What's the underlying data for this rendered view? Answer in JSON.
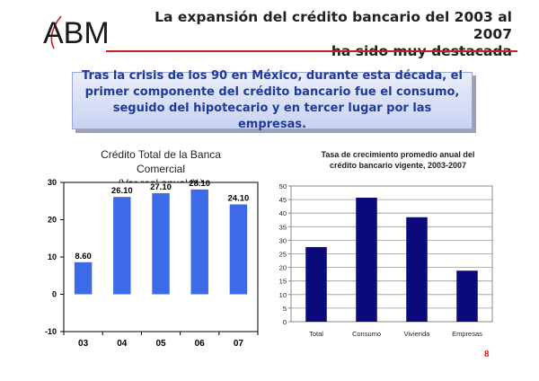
{
  "header": {
    "logo_text": "ABM",
    "title_line1": "La expansión del crédito bancario del 2003 al 2007",
    "title_line2": "ha sido muy destacada"
  },
  "callout": {
    "text": "Tras la crisis de los 90 en México, durante esta década, el primer componente del crédito bancario fue el consumo, seguido del hipotecario y en tercer lugar por las empresas."
  },
  "colors": {
    "title_rule": "#c81e1e",
    "callout_text": "#1f3a9b",
    "chart1_bars": "#3d6be8",
    "chart2_bars": "#0a0a7a"
  },
  "page_number": "8",
  "chart_data": [
    {
      "type": "bar",
      "title_lines": [
        "Crédito Total de la Banca",
        "Comercial",
        "(Var real anual %)"
      ],
      "categories": [
        "03",
        "04",
        "05",
        "06",
        "07"
      ],
      "values": [
        8.6,
        26.1,
        27.1,
        28.1,
        24.1
      ],
      "data_labels": [
        "8.60",
        "26.10",
        "27.10",
        "28.10",
        "24.10"
      ],
      "yticks": [
        "-10",
        "0",
        "10",
        "20",
        "30"
      ],
      "ylim": [
        -10,
        30
      ],
      "grid": false
    },
    {
      "type": "bar",
      "title_lines": [
        "Tasa de crecimiento promedio anual del",
        "crédito bancario vigente, 2003-2007"
      ],
      "categories": [
        "Total",
        "Consumo",
        "Vivienda",
        "Empresas"
      ],
      "values": [
        27.5,
        45.7,
        38.5,
        18.8
      ],
      "yticks": [
        "0",
        "5",
        "10",
        "15",
        "20",
        "25",
        "30",
        "35",
        "40",
        "45",
        "50"
      ],
      "ylim": [
        0,
        50
      ],
      "grid": true
    }
  ]
}
